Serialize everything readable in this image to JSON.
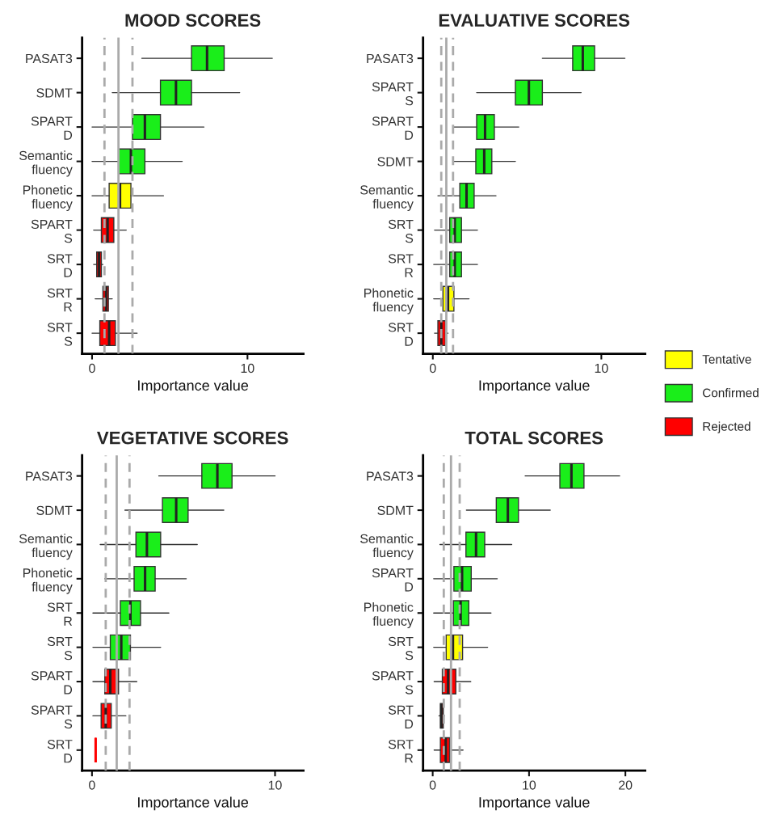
{
  "chart_data": [
    {
      "type": "box",
      "orientation": "horizontal",
      "title": "MOOD SCORES",
      "xlabel": "Importance value",
      "xlim": [
        -0.64,
        13.6
      ],
      "xticks": [
        0,
        10
      ],
      "categories": [
        "PASAT3",
        "SDMT",
        "SPART\nD",
        "Semantic\nfluency",
        "Phonetic\nfluency",
        "SPART\nS",
        "SRT\nD",
        "SRT\nR",
        "SRT\nS"
      ],
      "ref_lines": [
        {
          "axis": "x",
          "value": 0.8,
          "line_style": "dashed",
          "color": "#aaaaaa"
        },
        {
          "axis": "x",
          "value": 1.7,
          "line_style": "solid",
          "color": "#aaaaaa"
        },
        {
          "axis": "x",
          "value": 2.6,
          "line_style": "dashed",
          "color": "#aaaaaa"
        }
      ],
      "series": [
        {
          "color": "#ffff00",
          "boxes": [
            null,
            null,
            null,
            null,
            {
              "low": 0,
              "q1": 1.1,
              "median": 1.8,
              "q3": 2.5,
              "high": 4.6
            },
            null,
            null,
            null,
            null
          ]
        },
        {
          "color": "#1aee1a",
          "boxes": [
            {
              "low": 3.2,
              "q1": 6.4,
              "median": 7.4,
              "q3": 8.5,
              "high": 11.6
            },
            {
              "low": 1.3,
              "q1": 4.4,
              "median": 5.4,
              "q3": 6.4,
              "high": 9.5
            },
            {
              "low": 0,
              "q1": 2.6,
              "median": 3.4,
              "q3": 4.4,
              "high": 7.2
            },
            {
              "low": 0,
              "q1": 1.7,
              "median": 2.5,
              "q3": 3.4,
              "high": 5.8
            },
            null,
            null,
            null,
            null,
            null
          ]
        },
        {
          "color": "#ff0000",
          "boxes": [
            null,
            null,
            null,
            null,
            null,
            {
              "low": 0.1,
              "q1": 0.6,
              "median": 1.0,
              "q3": 1.4,
              "high": 2.2
            },
            {
              "low": 0.1,
              "q1": 0.3,
              "median": 0.45,
              "q3": 0.6,
              "high": 0.7
            },
            {
              "low": 0.2,
              "q1": 0.7,
              "median": 0.9,
              "q3": 1.05,
              "high": 1.3
            },
            {
              "low": 0,
              "q1": 0.5,
              "median": 1.1,
              "q3": 1.5,
              "high": 2.9
            }
          ]
        }
      ]
    },
    {
      "type": "box",
      "orientation": "horizontal",
      "title": "EVALUATIVE SCORES",
      "xlabel": "Importance value",
      "legend": "right",
      "xlim": [
        -0.58,
        12.6
      ],
      "xticks": [
        0,
        10
      ],
      "categories": [
        "PASAT3",
        "SPART\nS",
        "SPART\nD",
        "SDMT",
        "Semantic\nfluency",
        "SRT\nS",
        "SRT\nR",
        "Phonetic\nfluency",
        "SRT\nD"
      ],
      "ref_lines": [
        {
          "axis": "x",
          "value": 0.5,
          "line_style": "dashed",
          "color": "#aaaaaa"
        },
        {
          "axis": "x",
          "value": 0.8,
          "line_style": "solid",
          "color": "#aaaaaa"
        },
        {
          "axis": "x",
          "value": 1.2,
          "line_style": "dashed",
          "color": "#aaaaaa"
        }
      ],
      "series": [
        {
          "name": "Tentative",
          "color": "#ffff00",
          "boxes": [
            null,
            null,
            null,
            null,
            null,
            null,
            null,
            {
              "low": 0.05,
              "q1": 0.6,
              "median": 0.9,
              "q3": 1.25,
              "high": 2.15
            },
            null
          ]
        },
        {
          "name": "Confirmed",
          "color": "#1aee1a",
          "boxes": [
            {
              "low": 6.5,
              "q1": 8.3,
              "median": 8.9,
              "q3": 9.6,
              "high": 11.4
            },
            {
              "low": 2.6,
              "q1": 4.9,
              "median": 5.7,
              "q3": 6.5,
              "high": 8.8
            },
            {
              "low": 1.25,
              "q1": 2.6,
              "median": 3.1,
              "q3": 3.65,
              "high": 5.1
            },
            {
              "low": 1.25,
              "q1": 2.55,
              "median": 3.05,
              "q3": 3.5,
              "high": 4.9
            },
            {
              "low": 0.3,
              "q1": 1.6,
              "median": 2.0,
              "q3": 2.45,
              "high": 3.75
            },
            {
              "low": 0.1,
              "q1": 1.0,
              "median": 1.3,
              "q3": 1.7,
              "high": 2.65
            },
            {
              "low": 0.05,
              "q1": 1.0,
              "median": 1.3,
              "q3": 1.7,
              "high": 2.65
            },
            null,
            null
          ]
        },
        {
          "name": "Rejected",
          "color": "#ff0000",
          "boxes": [
            null,
            null,
            null,
            null,
            null,
            null,
            null,
            null,
            {
              "low": 0.1,
              "q1": 0.3,
              "median": 0.5,
              "q3": 0.75,
              "high": 0.9
            }
          ]
        }
      ]
    },
    {
      "type": "box",
      "orientation": "horizontal",
      "title": "VEGETATIVE SCORES",
      "xlabel": "Importance value",
      "xlim": [
        -0.54,
        11.55
      ],
      "xticks": [
        0,
        10
      ],
      "categories": [
        "PASAT3",
        "SDMT",
        "Semantic\nfluency",
        "Phonetic\nfluency",
        "SRT\nR",
        "SRT\nS",
        "SPART\nD",
        "SPART\nS",
        "SRT\nD"
      ],
      "ref_lines": [
        {
          "axis": "x",
          "value": 0.75,
          "line_style": "dashed",
          "color": "#aaaaaa"
        },
        {
          "axis": "x",
          "value": 1.35,
          "line_style": "solid",
          "color": "#aaaaaa"
        },
        {
          "axis": "x",
          "value": 2.05,
          "line_style": "dashed",
          "color": "#aaaaaa"
        }
      ],
      "series": [
        {
          "color": "#1aee1a",
          "boxes": [
            {
              "low": 3.65,
              "q1": 6.0,
              "median": 6.85,
              "q3": 7.65,
              "high": 10.0
            },
            {
              "low": 1.8,
              "q1": 3.85,
              "median": 4.6,
              "q3": 5.25,
              "high": 7.2
            },
            {
              "low": 0.45,
              "q1": 2.4,
              "median": 3.0,
              "q3": 3.75,
              "high": 5.75
            },
            {
              "low": 0.7,
              "q1": 2.3,
              "median": 2.9,
              "q3": 3.45,
              "high": 5.15
            },
            {
              "low": 0.05,
              "q1": 1.55,
              "median": 2.1,
              "q3": 2.65,
              "high": 4.2
            },
            {
              "low": 0.05,
              "q1": 1.0,
              "median": 1.6,
              "q3": 2.1,
              "high": 3.75
            },
            null,
            null,
            null
          ]
        },
        {
          "color": "#ff0000",
          "boxes": [
            null,
            null,
            null,
            null,
            null,
            null,
            {
              "low": 0.05,
              "q1": 0.7,
              "median": 1.0,
              "q3": 1.45,
              "high": 2.45
            },
            {
              "low": 0.05,
              "q1": 0.5,
              "median": 0.75,
              "q3": 1.05,
              "high": 1.85
            },
            {
              "low": 0.2,
              "q1": 0.2,
              "median": 0.2,
              "q3": 0.2,
              "high": 0.2
            }
          ]
        }
      ]
    },
    {
      "type": "box",
      "orientation": "horizontal",
      "title": "TOTAL SCORES",
      "xlabel": "Importance value",
      "xlim": [
        -1.0,
        22.05
      ],
      "xticks": [
        0,
        10,
        20
      ],
      "categories": [
        "PASAT3",
        "SDMT",
        "Semantic\nfluency",
        "SPART\nD",
        "Phonetic\nfluency",
        "SRT\nS",
        "SPART\nS",
        "SRT\nD",
        "SRT\nR"
      ],
      "ref_lines": [
        {
          "axis": "x",
          "value": 1.15,
          "line_style": "dashed",
          "color": "#aaaaaa"
        },
        {
          "axis": "x",
          "value": 1.9,
          "line_style": "solid",
          "color": "#aaaaaa"
        },
        {
          "axis": "x",
          "value": 2.8,
          "line_style": "dashed",
          "color": "#aaaaaa"
        }
      ],
      "series": [
        {
          "color": "#ffff00",
          "boxes": [
            null,
            null,
            null,
            null,
            null,
            {
              "low": 0.1,
              "q1": 1.4,
              "median": 2.1,
              "q3": 3.1,
              "high": 5.7
            },
            null,
            null,
            null
          ]
        },
        {
          "color": "#1aee1a",
          "boxes": [
            {
              "low": 9.6,
              "q1": 13.2,
              "median": 14.4,
              "q3": 15.7,
              "high": 19.4
            },
            {
              "low": 3.5,
              "q1": 6.6,
              "median": 7.8,
              "q3": 8.9,
              "high": 12.2
            },
            {
              "low": 0.75,
              "q1": 3.45,
              "median": 4.5,
              "q3": 5.4,
              "high": 8.2
            },
            {
              "low": 0.1,
              "q1": 2.2,
              "median": 3.05,
              "q3": 4.0,
              "high": 6.7
            },
            {
              "low": 0.1,
              "q1": 2.15,
              "median": 2.9,
              "q3": 3.75,
              "high": 6.05
            },
            null,
            null,
            null,
            null
          ]
        },
        {
          "color": "#ff0000",
          "boxes": [
            null,
            null,
            null,
            null,
            null,
            null,
            {
              "low": 0.15,
              "q1": 1.0,
              "median": 1.6,
              "q3": 2.4,
              "high": 3.95
            },
            {
              "low": 0.65,
              "q1": 0.8,
              "median": 0.9,
              "q3": 1.1,
              "high": 1.2
            },
            {
              "low": 0.15,
              "q1": 0.8,
              "median": 1.35,
              "q3": 1.75,
              "high": 3.15
            }
          ]
        }
      ]
    }
  ]
}
